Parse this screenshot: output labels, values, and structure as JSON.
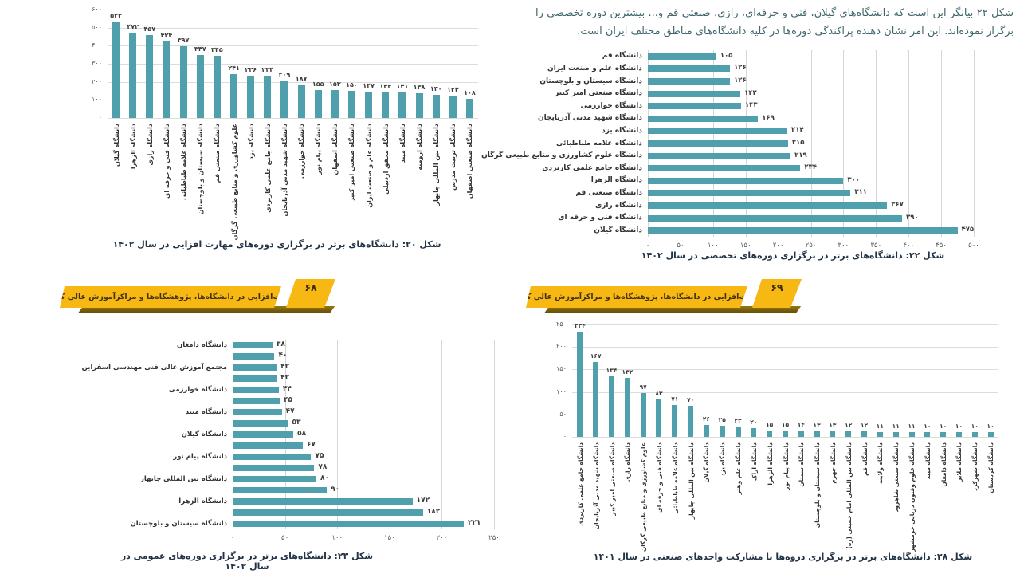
{
  "page_left": {
    "banner": {
      "text": "مهارت‌افزایی در دانشگاه‌ها، پژوهشگاه‌ها و مراکزآموزش عالی کشور",
      "page_number": "۶۸"
    }
  },
  "page_right": {
    "banner": {
      "text": "مهارت‌افزایی در دانشگاه‌ها، پژوهشگاه‌ها و مراکزآموزش عالی کشور",
      "page_number": "۶۹"
    },
    "paragraph": "شکل ۲۲ بیانگر این است که دانشگاه‌های گیلان، فنی و حرفه‌ای، رازی، صنعتی قم و... بیشترین دوره تخصصی را برگزار نموده‌اند. این امر نشان دهنده پراکندگی دوره‌ها در کلیه دانشگاه‌های مناطق مختلف ایران است."
  },
  "chart_data": [
    {
      "id": "fig20",
      "type": "bar",
      "orientation": "vertical",
      "caption": "شکل ۲۰: دانشگاه‌های برتر در برگزاری دوره‌های مهارت افزایی در سال ۱۴۰۲",
      "categories": [
        "دانشگاه گیلان",
        "دانشگاه الزهرا",
        "دانشگاه رازی",
        "دانشگاه فنی و حرفه ای",
        "دانشگاه علامه طباطبائی",
        "دانشگاه سیستان و بلوچستان",
        "دانشگاه صنعتی قم",
        "علوم کشاورزی و منابع طبیعی گرگان",
        "دانشگاه یزد",
        "دانشگاه جامع علمی کاربردی",
        "دانشگاه شهید مدنی آذربایجان",
        "دانشگاه خوارزمی",
        "دانشگاه پیام نور",
        "دانشگاه اصفهان",
        "دانشگاه صنعتی امیر کبیر",
        "دانشگاه علم و صنعت ایران",
        "دانشگاه محقق اردبیلی",
        "دانشگاه میبد",
        "دانشگاه ارومیه",
        "دانشگاه بین المللی چابهار",
        "دانشگاه تربیت مدرس",
        "دانشگاه صنعتی اصفهان"
      ],
      "values": [
        533,
        472,
        457,
        424,
        397,
        347,
        345,
        241,
        236,
        234,
        209,
        187,
        155,
        153,
        150,
        147,
        143,
        141,
        138,
        130,
        124,
        108
      ],
      "value_labels": [
        "۵۳۳",
        "۴۷۲",
        "۴۵۷",
        "۴۲۴",
        "۳۹۷",
        "۳۴۷",
        "۳۴۵",
        "۲۴۱",
        "۲۳۶",
        "۲۳۴",
        "۲۰۹",
        "۱۸۷",
        "۱۵۵",
        "۱۵۳",
        "۱۵۰",
        "۱۴۷",
        "۱۴۳",
        "۱۴۱",
        "۱۳۸",
        "۱۳۰",
        "۱۲۴",
        "۱۰۸"
      ],
      "axis": {
        "max": 600,
        "ticks": [
          {
            "v": 0,
            "label": "۰"
          },
          {
            "v": 100,
            "label": "۱۰۰"
          },
          {
            "v": 200,
            "label": "۲۰۰"
          },
          {
            "v": 300,
            "label": "۳۰۰"
          },
          {
            "v": 400,
            "label": "۴۰۰"
          },
          {
            "v": 500,
            "label": "۵۰۰"
          },
          {
            "v": 600,
            "label": "۶۰۰"
          }
        ]
      }
    },
    {
      "id": "fig22",
      "type": "bar",
      "orientation": "horizontal",
      "caption": "شکل ۲۲: دانشگاه‌های برتر در برگزاری دوره‌های تخصصی در سال ۱۴۰۲",
      "categories": [
        "دانشگاه قم",
        "دانشگاه علم و صنعت ایران",
        "دانشگاه سیستان و بلوچستان",
        "دانشگاه صنعتی امیر کبیر",
        "دانشگاه خوارزمی",
        "دانشگاه شهید مدنی آذربایجان",
        "دانشگاه یزد",
        "دانشگاه علامه طباطبائی",
        "دانشگاه علوم کشاورزی و منابع طبیعی گرگان",
        "دانشگاه جامع علمی کاربردی",
        "دانشگاه الزهرا",
        "دانشگاه صنعتی قم",
        "دانشگاه رازی",
        "دانشگاه فنی و حرفه ای",
        "دانشگاه گیلان"
      ],
      "values": [
        105,
        126,
        126,
        142,
        143,
        169,
        214,
        215,
        219,
        234,
        300,
        311,
        367,
        390,
        475
      ],
      "value_labels": [
        "۱۰۵",
        "۱۲۶",
        "۱۲۶",
        "۱۴۲",
        "۱۴۳",
        "۱۶۹",
        "۲۱۴",
        "۲۱۵",
        "۲۱۹",
        "۲۳۴",
        "۳۰۰",
        "۳۱۱",
        "۳۶۷",
        "۳۹۰",
        "۴۷۵"
      ],
      "axis": {
        "max": 500,
        "ticks": [
          {
            "v": 0,
            "label": "۰"
          },
          {
            "v": 50,
            "label": "۵۰"
          },
          {
            "v": 100,
            "label": "۱۰۰"
          },
          {
            "v": 150,
            "label": "۱۵۰"
          },
          {
            "v": 200,
            "label": "۲۰۰"
          },
          {
            "v": 250,
            "label": "۲۵۰"
          },
          {
            "v": 300,
            "label": "۳۰۰"
          },
          {
            "v": 350,
            "label": "۳۵۰"
          },
          {
            "v": 400,
            "label": "۴۰۰"
          },
          {
            "v": 450,
            "label": "۴۵۰"
          },
          {
            "v": 500,
            "label": "۵۰۰"
          }
        ]
      }
    },
    {
      "id": "fig23",
      "type": "bar",
      "orientation": "horizontal",
      "caption": "شکل ۲۳: دانشگاه‌های برتر در برگزاری دوره‌های عمومی در سال ۱۴۰۲",
      "categories": [
        "دانشگاه دامغان",
        "",
        "مجتمع آموزش عالی فنی مهندسی اسفراین",
        "",
        "دانشگاه خوارزمی",
        "",
        "دانشگاه میبد",
        "",
        "دانشگاه گیلان",
        "",
        "دانشگاه پیام نور",
        "",
        "دانشگاه بین المللی چابهار",
        "",
        "دانشگاه الزهرا",
        "",
        "دانشگاه سیستان و بلوچستان"
      ],
      "values": [
        38,
        40,
        42,
        42,
        44,
        45,
        47,
        53,
        58,
        67,
        75,
        78,
        80,
        90,
        172,
        182,
        221
      ],
      "value_labels": [
        "۳۸",
        "۴۰",
        "۴۲",
        "۴۲",
        "۴۴",
        "۴۵",
        "۴۷",
        "۵۳",
        "۵۸",
        "۶۷",
        "۷۵",
        "۷۸",
        "۸۰",
        "۹۰",
        "۱۷۲",
        "۱۸۲",
        "۲۲۱"
      ],
      "axis": {
        "max": 250,
        "ticks": [
          {
            "v": 0,
            "label": "۰"
          },
          {
            "v": 50,
            "label": "۵۰"
          },
          {
            "v": 100,
            "label": "۱۰۰"
          },
          {
            "v": 150,
            "label": "۱۵۰"
          },
          {
            "v": 200,
            "label": "۲۰۰"
          },
          {
            "v": 250,
            "label": "۲۵۰"
          }
        ]
      }
    },
    {
      "id": "fig28",
      "type": "bar",
      "orientation": "vertical",
      "caption": "شکل ۲۸: دانشگاه‌های برتر در برگزاری دروه‌ها با مشارکت واحدهای صنعتی در سال ۱۴۰۱",
      "categories": [
        "دانشگاه جامع علمی کاربردی",
        "دانشگاه شهید مدنی آذربایجان",
        "دانشگاه صنعتی امیر کبیر",
        "دانشگاه رازی",
        "علوم کشاورزی و منابع طبیعی گرگان",
        "دانشگاه فنی و حرفه ای",
        "دانشگاه علامه طباطبائی",
        "دانشگاه بین المللی چابهار",
        "دانشگاه گیلان",
        "دانشگاه یزد",
        "دانشگاه علم وهنر",
        "دانشگاه اراک",
        "دانشگاه الزهرا",
        "دانشگاه پیام نور",
        "دانشگاه سمنان",
        "دانشگاه سیستان و بلوچستان",
        "دانشگاه جهرم",
        "دانشگاه بین المللی امام خمینی (ره)",
        "دانشگاه قم",
        "دانشگاه ولایت",
        "دانشگاه صنعتی شاهرود",
        "دانشگاه علوم وفنون دریایی خرمشهر",
        "دانشگاه میبد",
        "دانشگاه دامغان",
        "دانشگاه ملایر",
        "دانشگاه شهرکرد",
        "دانشگاه کردستان"
      ],
      "values": [
        234,
        167,
        134,
        132,
        97,
        83,
        71,
        70,
        26,
        25,
        23,
        20,
        15,
        15,
        14,
        13,
        13,
        12,
        12,
        11,
        11,
        11,
        10,
        10,
        10,
        10,
        10
      ],
      "value_labels": [
        "۲۳۴",
        "۱۶۷",
        "۱۳۴",
        "۱۳۲",
        "۹۷",
        "۸۳",
        "۷۱",
        "۷۰",
        "۲۶",
        "۲۵",
        "۲۳",
        "۲۰",
        "۱۵",
        "۱۵",
        "۱۴",
        "۱۳",
        "۱۳",
        "۱۲",
        "۱۲",
        "۱۱",
        "۱۱",
        "۱۱",
        "۱۰",
        "۱۰",
        "۱۰",
        "۱۰",
        "۱۰"
      ],
      "axis": {
        "max": 250,
        "ticks": [
          {
            "v": 0,
            "label": "۰"
          },
          {
            "v": 50,
            "label": "۵۰"
          },
          {
            "v": 100,
            "label": "۱۰۰"
          },
          {
            "v": 150,
            "label": "۱۵۰"
          },
          {
            "v": 200,
            "label": "۲۰۰"
          },
          {
            "v": 250,
            "label": "۲۵۰"
          }
        ]
      }
    }
  ]
}
